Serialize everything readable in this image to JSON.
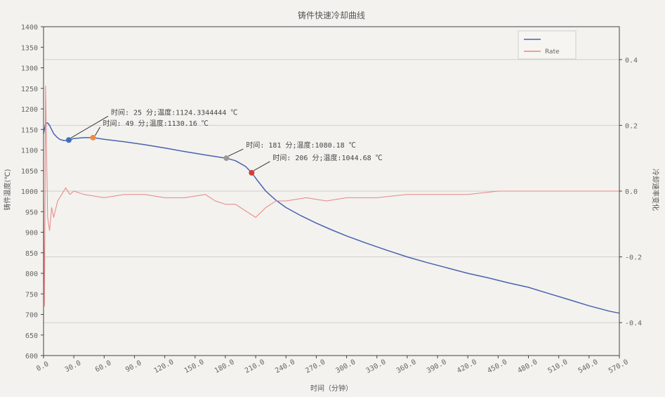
{
  "chart_data": {
    "type": "line",
    "title": "铸件快速冷却曲线",
    "xlabel": "时间（分钟）",
    "ylabel": "铸件温度(℃)",
    "ylabel_right": "冷却速率变化",
    "xlim": [
      0,
      570
    ],
    "ylim": [
      600,
      1400
    ],
    "ylim_right": [
      -0.5,
      0.5
    ],
    "x_ticks": [
      "0.0",
      "30.0",
      "60.0",
      "90.0",
      "120.0",
      "150.0",
      "180.0",
      "210.0",
      "240.0",
      "270.0",
      "300.0",
      "330.0",
      "360.0",
      "390.0",
      "420.0",
      "450.0",
      "480.0",
      "510.0",
      "540.0",
      "570.0"
    ],
    "y_ticks": [
      "1400",
      "1350",
      "1300",
      "1250",
      "1200",
      "1150",
      "1100",
      "1050",
      "1000",
      "950",
      "900",
      "850",
      "800",
      "750",
      "700",
      "650",
      "600"
    ],
    "y_ticks_right": [
      "0.4",
      "0.2",
      "0.0",
      "-0.2",
      "-0.4"
    ],
    "grid": "horizontal",
    "legend_position": "top-right",
    "series": [
      {
        "name": "",
        "axis": "left",
        "color": "#4a63b0",
        "x": [
          0,
          2,
          4,
          6,
          8,
          10,
          13,
          16,
          20,
          25,
          30,
          40,
          49,
          60,
          80,
          100,
          120,
          140,
          160,
          181,
          190,
          200,
          206,
          212,
          220,
          230,
          240,
          255,
          270,
          285,
          300,
          320,
          340,
          360,
          380,
          400,
          420,
          440,
          460,
          480,
          500,
          520,
          540,
          560,
          570
        ],
        "y": [
          1140,
          1165,
          1166,
          1160,
          1150,
          1140,
          1132,
          1126,
          1123,
          1124,
          1128,
          1130,
          1130,
          1126,
          1120,
          1113,
          1105,
          1096,
          1088,
          1080,
          1074,
          1060,
          1045,
          1025,
          1000,
          978,
          960,
          940,
          922,
          906,
          891,
          873,
          856,
          840,
          826,
          813,
          800,
          789,
          777,
          766,
          751,
          736,
          721,
          708,
          703
        ]
      },
      {
        "name": "Rate",
        "axis": "right",
        "color": "#e88585",
        "x": [
          0,
          1,
          2,
          4,
          6,
          8,
          10,
          14,
          18,
          22,
          26,
          30,
          40,
          60,
          80,
          100,
          120,
          140,
          160,
          170,
          180,
          190,
          200,
          210,
          220,
          230,
          240,
          260,
          280,
          300,
          330,
          360,
          390,
          420,
          450,
          480,
          510,
          540,
          570
        ],
        "y": [
          0,
          -0.35,
          0.32,
          -0.08,
          -0.12,
          -0.05,
          -0.08,
          -0.03,
          -0.01,
          0.01,
          -0.01,
          0.0,
          -0.01,
          -0.02,
          -0.01,
          -0.01,
          -0.02,
          -0.02,
          -0.01,
          -0.03,
          -0.04,
          -0.04,
          -0.06,
          -0.08,
          -0.05,
          -0.03,
          -0.03,
          -0.02,
          -0.03,
          -0.02,
          -0.02,
          -0.01,
          -0.01,
          -0.01,
          0.0,
          0.0,
          0.0,
          0.0,
          0.0
        ]
      }
    ],
    "points": [
      {
        "x": 25,
        "y": 1124.3344444,
        "color": "#3d6ec0",
        "label": "时间: 25 分;温度:1124.3344444 ℃"
      },
      {
        "x": 49,
        "y": 1130.16,
        "color": "#f08a3c",
        "label": "时间: 49 分;温度:1130.16 ℃"
      },
      {
        "x": 181,
        "y": 1080.18,
        "color": "#999999",
        "label": "时间: 181 分;温度:1080.18 ℃"
      },
      {
        "x": 206,
        "y": 1044.68,
        "color": "#d23c3c",
        "label": "时间: 206 分;温度:1044.68 ℃"
      }
    ]
  }
}
